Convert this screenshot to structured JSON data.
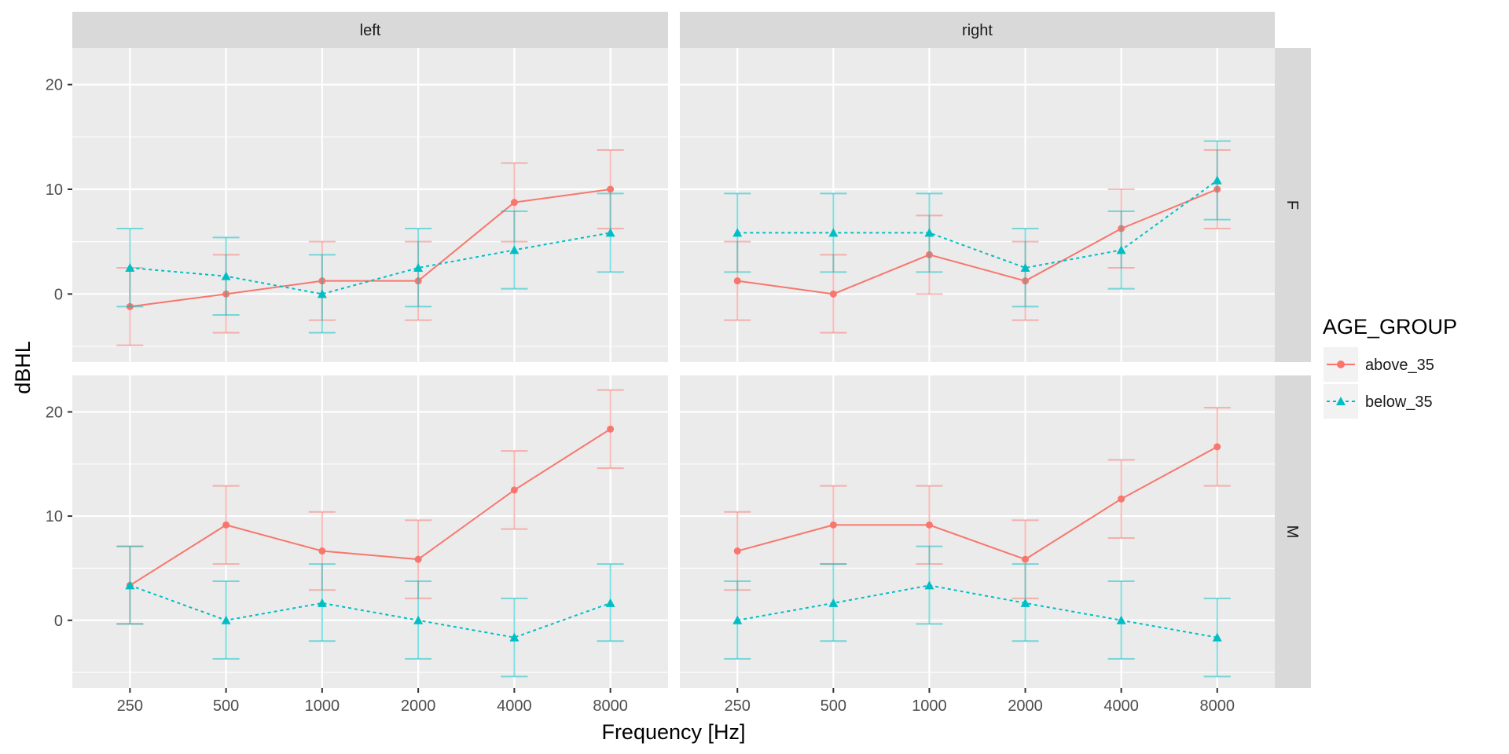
{
  "chart_data": {
    "type": "line",
    "xlabel": "Frequency [Hz]",
    "ylabel": "dBHL",
    "categories": [
      "250",
      "500",
      "1000",
      "2000",
      "4000",
      "8000"
    ],
    "y_ticks": [
      0,
      10,
      20
    ],
    "ylim": [
      -6.5,
      23.5
    ],
    "grid": true,
    "legend": {
      "title": "AGE_GROUP",
      "position": "right",
      "entries": [
        "above_35",
        "below_35"
      ]
    },
    "colors": {
      "above_35": "#F8766D",
      "below_35": "#00BFC4"
    },
    "facet_cols": [
      "left",
      "right"
    ],
    "facet_rows": [
      "F",
      "M"
    ],
    "panels": [
      {
        "col": "left",
        "row": "F",
        "series": [
          {
            "name": "above_35",
            "values": [
              -1.2,
              0.0,
              1.25,
              1.25,
              8.75,
              10.0
            ],
            "err_low": [
              -4.9,
              -3.7,
              -2.5,
              -2.5,
              5.0,
              6.25
            ],
            "err_high": [
              2.5,
              3.75,
              5.0,
              5.0,
              12.5,
              13.75
            ]
          },
          {
            "name": "below_35",
            "values": [
              2.5,
              1.7,
              0.0,
              2.5,
              4.2,
              5.85
            ],
            "err_low": [
              -1.2,
              -2.0,
              -3.7,
              -1.2,
              0.5,
              2.1
            ],
            "err_high": [
              6.25,
              5.4,
              3.75,
              6.25,
              7.9,
              9.6
            ]
          }
        ]
      },
      {
        "col": "right",
        "row": "F",
        "series": [
          {
            "name": "above_35",
            "values": [
              1.25,
              0.0,
              3.75,
              1.25,
              6.25,
              10.0
            ],
            "err_low": [
              -2.5,
              -3.7,
              0.0,
              -2.5,
              2.5,
              6.25
            ],
            "err_high": [
              5.0,
              3.75,
              7.5,
              5.0,
              10.0,
              13.75
            ]
          },
          {
            "name": "below_35",
            "values": [
              5.85,
              5.85,
              5.85,
              2.5,
              4.2,
              10.85
            ],
            "err_low": [
              2.1,
              2.1,
              2.1,
              -1.2,
              0.5,
              7.1
            ],
            "err_high": [
              9.6,
              9.6,
              9.6,
              6.25,
              7.9,
              14.6
            ]
          }
        ]
      },
      {
        "col": "left",
        "row": "M",
        "series": [
          {
            "name": "above_35",
            "values": [
              3.35,
              9.15,
              6.65,
              5.85,
              12.5,
              18.35
            ],
            "err_low": [
              -0.35,
              5.4,
              2.9,
              2.1,
              8.75,
              14.6
            ],
            "err_high": [
              7.1,
              12.9,
              10.4,
              9.6,
              16.25,
              22.1
            ]
          },
          {
            "name": "below_35",
            "values": [
              3.35,
              0.0,
              1.65,
              0.0,
              -1.65,
              1.65
            ],
            "err_low": [
              -0.35,
              -3.7,
              -2.0,
              -3.7,
              -5.4,
              -2.0
            ],
            "err_high": [
              7.1,
              3.75,
              5.4,
              3.75,
              2.1,
              5.4
            ]
          }
        ]
      },
      {
        "col": "right",
        "row": "M",
        "series": [
          {
            "name": "above_35",
            "values": [
              6.65,
              9.15,
              9.15,
              5.85,
              11.65,
              16.65
            ],
            "err_low": [
              2.9,
              5.4,
              5.4,
              2.1,
              7.9,
              12.9
            ],
            "err_high": [
              10.4,
              12.9,
              12.9,
              9.6,
              15.4,
              20.4
            ]
          },
          {
            "name": "below_35",
            "values": [
              0.0,
              1.65,
              3.35,
              1.65,
              0.0,
              -1.65
            ],
            "err_low": [
              -3.7,
              -2.0,
              -0.35,
              -2.0,
              -3.7,
              -5.4
            ],
            "err_high": [
              3.75,
              5.4,
              7.1,
              5.4,
              3.75,
              2.1
            ]
          }
        ]
      }
    ]
  }
}
